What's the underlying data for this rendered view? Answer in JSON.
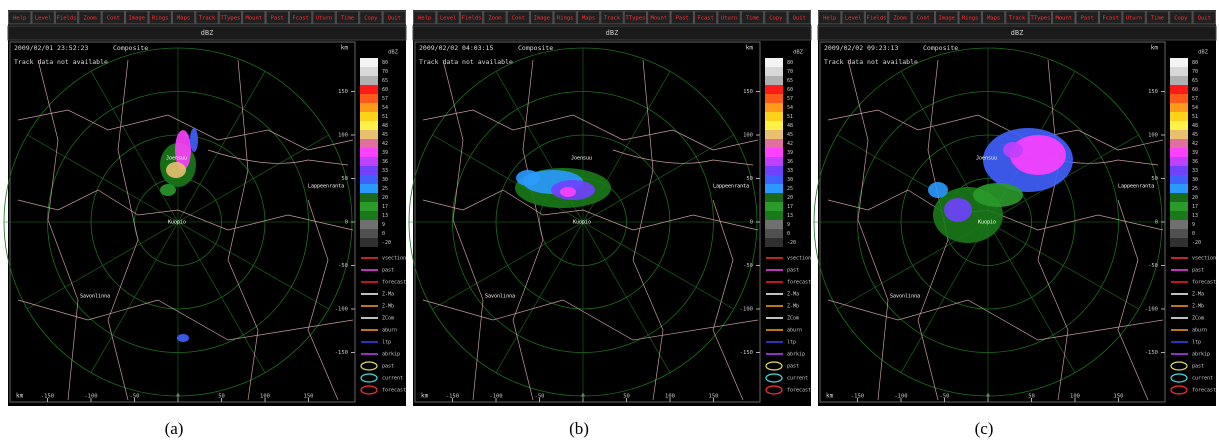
{
  "menu": [
    "Help",
    "Level",
    "Fields",
    "Zoom",
    "Cont",
    "Image",
    "Rings",
    "Maps",
    "Track",
    "TTypes",
    "Mount",
    "Past",
    "Fcast",
    "Uturn",
    "Time",
    "Copy",
    "Quit"
  ],
  "field": "dBZ",
  "product": "Composite",
  "track_message": "Track data not available",
  "unit": "km",
  "scale_unit": "dBZ",
  "scale": [
    {
      "label": "80",
      "color": "#f4f4f4"
    },
    {
      "label": "70",
      "color": "#d8d8d8"
    },
    {
      "label": "65",
      "color": "#b0b0b0"
    },
    {
      "label": "60",
      "color": "#ff1a1a"
    },
    {
      "label": "57",
      "color": "#ff5a1a"
    },
    {
      "label": "54",
      "color": "#ff9a1a"
    },
    {
      "label": "51",
      "color": "#ffd21a"
    },
    {
      "label": "48",
      "color": "#fff04a"
    },
    {
      "label": "45",
      "color": "#e8c070"
    },
    {
      "label": "42",
      "color": "#e070a0"
    },
    {
      "label": "39",
      "color": "#ff40ff"
    },
    {
      "label": "36",
      "color": "#c040ff"
    },
    {
      "label": "33",
      "color": "#7040ff"
    },
    {
      "label": "30",
      "color": "#4060ff"
    },
    {
      "label": "25",
      "color": "#2a9aff"
    },
    {
      "label": "20",
      "color": "#1a6a1a"
    },
    {
      "label": "17",
      "color": "#2a9a2a"
    },
    {
      "label": "13",
      "color": "#1a7a1a"
    },
    {
      "label": "9",
      "color": "#707070"
    },
    {
      "label": "0",
      "color": "#505050"
    },
    {
      "label": "-20",
      "color": "#303030"
    }
  ],
  "legend": [
    {
      "label": "vsection",
      "color": "#ff3030"
    },
    {
      "label": "past",
      "color": "#ff40ff"
    },
    {
      "label": "forecast",
      "color": "#ff2020"
    },
    {
      "label": "Z-Ma",
      "color": "#ffffff"
    },
    {
      "label": "Z-Mb",
      "color": "#ff9a1a"
    },
    {
      "label": "ZCom",
      "color": "#ffffff"
    },
    {
      "label": "aburn",
      "color": "#ff9a1a"
    },
    {
      "label": "ltp",
      "color": "#4040ff"
    },
    {
      "label": "abrkip",
      "color": "#c040ff"
    },
    {
      "label": "past",
      "color": "#e0e060"
    },
    {
      "label": "current",
      "color": "#40e0e0"
    },
    {
      "label": "forecast",
      "color": "#ff3030"
    }
  ],
  "x_ticks": [
    -150,
    -100,
    -50,
    0,
    50,
    100,
    150
  ],
  "y_ticks": [
    150,
    100,
    50,
    0,
    -50,
    -100,
    -150
  ],
  "places": [
    "Joensuu",
    "Kuopio",
    "Savonlinna",
    "Lappeenranta"
  ],
  "panels": [
    {
      "time": "2009/02/01 23:52:23",
      "caption": "(a)"
    },
    {
      "time": "2009/02/02 04:03:15",
      "caption": "(b)"
    },
    {
      "time": "2009/02/02 09:23:13",
      "caption": "(c)"
    }
  ]
}
